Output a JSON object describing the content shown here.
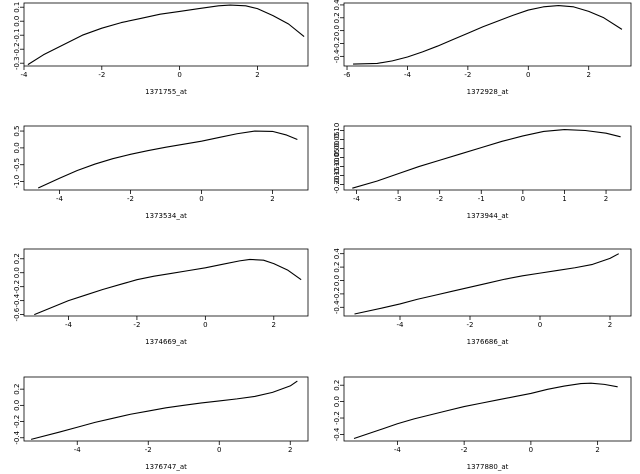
{
  "chart_data": [
    {
      "type": "line",
      "xlabel": "1371755_at",
      "ylabel": "",
      "xlim": [
        -4.0,
        3.3
      ],
      "ylim": [
        -0.32,
        0.13
      ],
      "xticks": [
        -4,
        -2,
        0,
        2
      ],
      "xtick_labels": [
        "-4",
        "-2",
        "0",
        "2"
      ],
      "yticks": [
        -0.3,
        -0.2,
        -0.1,
        0.0,
        0.1
      ],
      "ytick_labels": [
        "-0.3",
        "-0.2",
        "-0.1",
        "0.0",
        "0.1"
      ],
      "series": [
        {
          "x": [
            -3.9,
            -3.5,
            -3.0,
            -2.5,
            -2.0,
            -1.5,
            -1.0,
            -0.5,
            0.0,
            0.5,
            1.0,
            1.3,
            1.7,
            2.0,
            2.4,
            2.8,
            3.2
          ],
          "y": [
            -0.31,
            -0.24,
            -0.17,
            -0.1,
            -0.05,
            -0.01,
            0.02,
            0.05,
            0.07,
            0.09,
            0.11,
            0.115,
            0.11,
            0.09,
            0.04,
            -0.02,
            -0.11
          ]
        }
      ]
    },
    {
      "type": "line",
      "xlabel": "1372928_at",
      "ylabel": "",
      "xlim": [
        -6.1,
        3.4
      ],
      "ylim": [
        -0.55,
        0.43
      ],
      "xticks": [
        -6,
        -4,
        -2,
        0,
        2
      ],
      "xtick_labels": [
        "-6",
        "-4",
        "-2",
        "0",
        "2"
      ],
      "yticks": [
        -0.4,
        -0.2,
        0.0,
        0.2,
        0.4
      ],
      "ytick_labels": [
        "-0.4",
        "-0.2",
        "0.0",
        "0.2",
        "0.4"
      ],
      "series": [
        {
          "x": [
            -5.8,
            -5.0,
            -4.5,
            -4.0,
            -3.5,
            -3.0,
            -2.5,
            -2.0,
            -1.5,
            -1.0,
            -0.5,
            0.0,
            0.5,
            1.0,
            1.5,
            2.0,
            2.5,
            3.1
          ],
          "y": [
            -0.52,
            -0.51,
            -0.47,
            -0.41,
            -0.33,
            -0.24,
            -0.14,
            -0.04,
            0.06,
            0.15,
            0.24,
            0.32,
            0.37,
            0.39,
            0.37,
            0.3,
            0.2,
            0.02
          ]
        }
      ]
    },
    {
      "type": "line",
      "xlabel": "1373534_at",
      "ylabel": "",
      "xlim": [
        -5.0,
        3.0
      ],
      "ylim": [
        -1.25,
        0.65
      ],
      "xticks": [
        -4,
        -2,
        0,
        2
      ],
      "xtick_labels": [
        "-4",
        "-2",
        "0",
        "2"
      ],
      "yticks": [
        -1.0,
        -0.5,
        0.0,
        0.5
      ],
      "ytick_labels": [
        "-1.0",
        "-0.5",
        "0.0",
        "0.5"
      ],
      "series": [
        {
          "x": [
            -4.6,
            -4.0,
            -3.5,
            -3.0,
            -2.5,
            -2.0,
            -1.5,
            -1.0,
            -0.5,
            0.0,
            0.5,
            1.0,
            1.5,
            2.0,
            2.4,
            2.7
          ],
          "y": [
            -1.19,
            -0.9,
            -0.67,
            -0.48,
            -0.32,
            -0.19,
            -0.08,
            0.02,
            0.11,
            0.2,
            0.31,
            0.42,
            0.5,
            0.49,
            0.38,
            0.25
          ]
        }
      ]
    },
    {
      "type": "line",
      "xlabel": "1373944_at",
      "ylabel": "",
      "xlim": [
        -4.3,
        2.6
      ],
      "ylim": [
        -0.23,
        0.125
      ],
      "xticks": [
        -4,
        -3,
        -2,
        -1,
        0,
        1,
        2
      ],
      "xtick_labels": [
        "-4",
        "-3",
        "-2",
        "-1",
        "0",
        "1",
        "2"
      ],
      "yticks": [
        -0.2,
        -0.15,
        -0.1,
        -0.05,
        0.0,
        0.05,
        0.1
      ],
      "ytick_labels": [
        "-0.20",
        "-0.15",
        "-0.10",
        "-0.05",
        "0.00",
        "0.05",
        "0.10"
      ],
      "series": [
        {
          "x": [
            -4.1,
            -3.5,
            -3.0,
            -2.5,
            -2.0,
            -1.5,
            -1.0,
            -0.5,
            0.0,
            0.5,
            1.0,
            1.5,
            2.0,
            2.35
          ],
          "y": [
            -0.22,
            -0.18,
            -0.14,
            -0.1,
            -0.065,
            -0.03,
            0.005,
            0.04,
            0.07,
            0.095,
            0.105,
            0.1,
            0.085,
            0.065
          ]
        }
      ]
    },
    {
      "type": "line",
      "xlabel": "1374669_at",
      "ylabel": "",
      "xlim": [
        -5.3,
        3.0
      ],
      "ylim": [
        -0.62,
        0.34
      ],
      "xticks": [
        -4,
        -2,
        0,
        2
      ],
      "xtick_labels": [
        "-4",
        "-2",
        "0",
        "2"
      ],
      "yticks": [
        -0.6,
        -0.4,
        -0.2,
        0.0,
        0.2
      ],
      "ytick_labels": [
        "-0.6",
        "-0.4",
        "-0.2",
        "0.0",
        "0.2"
      ],
      "series": [
        {
          "x": [
            -5.0,
            -4.5,
            -4.0,
            -3.5,
            -3.0,
            -2.5,
            -2.0,
            -1.5,
            -1.0,
            -0.5,
            0.0,
            0.5,
            1.0,
            1.3,
            1.7,
            2.0,
            2.4,
            2.8
          ],
          "y": [
            -0.6,
            -0.5,
            -0.4,
            -0.32,
            -0.24,
            -0.17,
            -0.1,
            -0.05,
            -0.01,
            0.03,
            0.07,
            0.12,
            0.17,
            0.19,
            0.18,
            0.13,
            0.04,
            -0.1
          ]
        }
      ]
    },
    {
      "type": "line",
      "xlabel": "1376686_at",
      "ylabel": "",
      "xlim": [
        -5.6,
        2.6
      ],
      "ylim": [
        -0.53,
        0.47
      ],
      "xticks": [
        -4,
        -2,
        0,
        2
      ],
      "xtick_labels": [
        "-4",
        "-2",
        "0",
        "2"
      ],
      "yticks": [
        -0.4,
        -0.2,
        0.0,
        0.2,
        0.4
      ],
      "ytick_labels": [
        "-0.4",
        "-0.2",
        "0.0",
        "0.2",
        "0.4"
      ],
      "series": [
        {
          "x": [
            -5.3,
            -4.5,
            -4.0,
            -3.5,
            -3.0,
            -2.5,
            -2.0,
            -1.5,
            -1.0,
            -0.5,
            0.0,
            0.5,
            1.0,
            1.5,
            2.0,
            2.25
          ],
          "y": [
            -0.5,
            -0.41,
            -0.35,
            -0.28,
            -0.22,
            -0.16,
            -0.1,
            -0.04,
            0.02,
            0.07,
            0.11,
            0.15,
            0.19,
            0.24,
            0.33,
            0.4
          ]
        }
      ]
    },
    {
      "type": "line",
      "xlabel": "1376747_at",
      "ylabel": "",
      "xlim": [
        -5.5,
        2.5
      ],
      "ylim": [
        -0.44,
        0.35
      ],
      "xticks": [
        -4,
        -2,
        0,
        2
      ],
      "xtick_labels": [
        "-4",
        "-2",
        "0",
        "2"
      ],
      "yticks": [
        -0.4,
        -0.2,
        0.0,
        0.2
      ],
      "ytick_labels": [
        "-0.4",
        "-0.2",
        "0.0",
        "0.2"
      ],
      "series": [
        {
          "x": [
            -5.3,
            -4.5,
            -4.0,
            -3.5,
            -3.0,
            -2.5,
            -2.0,
            -1.5,
            -1.0,
            -0.5,
            0.0,
            0.5,
            1.0,
            1.5,
            2.0,
            2.2
          ],
          "y": [
            -0.42,
            -0.33,
            -0.27,
            -0.21,
            -0.16,
            -0.11,
            -0.07,
            -0.03,
            0.0,
            0.03,
            0.055,
            0.08,
            0.11,
            0.16,
            0.24,
            0.3
          ]
        }
      ]
    },
    {
      "type": "line",
      "xlabel": "1377880_at",
      "ylabel": "",
      "xlim": [
        -5.6,
        3.0
      ],
      "ylim": [
        -0.48,
        0.3
      ],
      "xticks": [
        -4,
        -2,
        0,
        2
      ],
      "xtick_labels": [
        "-4",
        "-2",
        "0",
        "2"
      ],
      "yticks": [
        -0.4,
        -0.2,
        0.0,
        0.2
      ],
      "ytick_labels": [
        "-0.4",
        "-0.2",
        "0.0",
        "0.2"
      ],
      "series": [
        {
          "x": [
            -5.3,
            -4.5,
            -4.0,
            -3.5,
            -3.0,
            -2.5,
            -2.0,
            -1.5,
            -1.0,
            -0.5,
            0.0,
            0.5,
            1.0,
            1.5,
            1.8,
            2.2,
            2.6
          ],
          "y": [
            -0.45,
            -0.34,
            -0.27,
            -0.21,
            -0.16,
            -0.11,
            -0.06,
            -0.02,
            0.02,
            0.06,
            0.1,
            0.15,
            0.19,
            0.22,
            0.225,
            0.21,
            0.18
          ]
        }
      ]
    }
  ]
}
